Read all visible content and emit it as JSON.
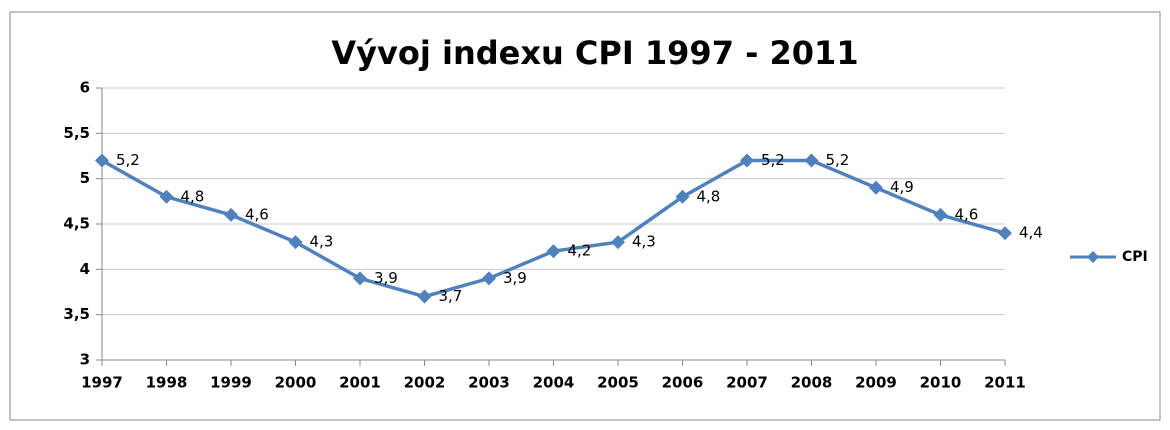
{
  "chart_data": {
    "type": "line",
    "title": "Vývoj indexu CPI 1997 - 2011",
    "categories": [
      "1997",
      "1998",
      "1999",
      "2000",
      "2001",
      "2002",
      "2003",
      "2004",
      "2005",
      "2006",
      "2007",
      "2008",
      "2009",
      "2010",
      "2011"
    ],
    "series": [
      {
        "name": "CPI",
        "color": "#4f81bd",
        "values": [
          5.2,
          4.8,
          4.6,
          4.3,
          3.9,
          3.7,
          3.9,
          4.2,
          4.3,
          4.8,
          5.2,
          5.2,
          4.9,
          4.6,
          4.4
        ],
        "value_labels": [
          "5,2",
          "4,8",
          "4,6",
          "4,3",
          "3,9",
          "3,7",
          "3,9",
          "4,2",
          "4,3",
          "4,8",
          "5,2",
          "5,2",
          "4,9",
          "4,6",
          "4,4"
        ]
      }
    ],
    "ylim": [
      3,
      6
    ],
    "yticks": [
      3,
      {
        "value": 3.5,
        "label": "3,5"
      },
      4,
      {
        "value": 4.5,
        "label": "4,5"
      },
      5,
      {
        "value": 5.5,
        "label": "5,5"
      },
      6
    ],
    "grid": true,
    "legend": "right"
  }
}
